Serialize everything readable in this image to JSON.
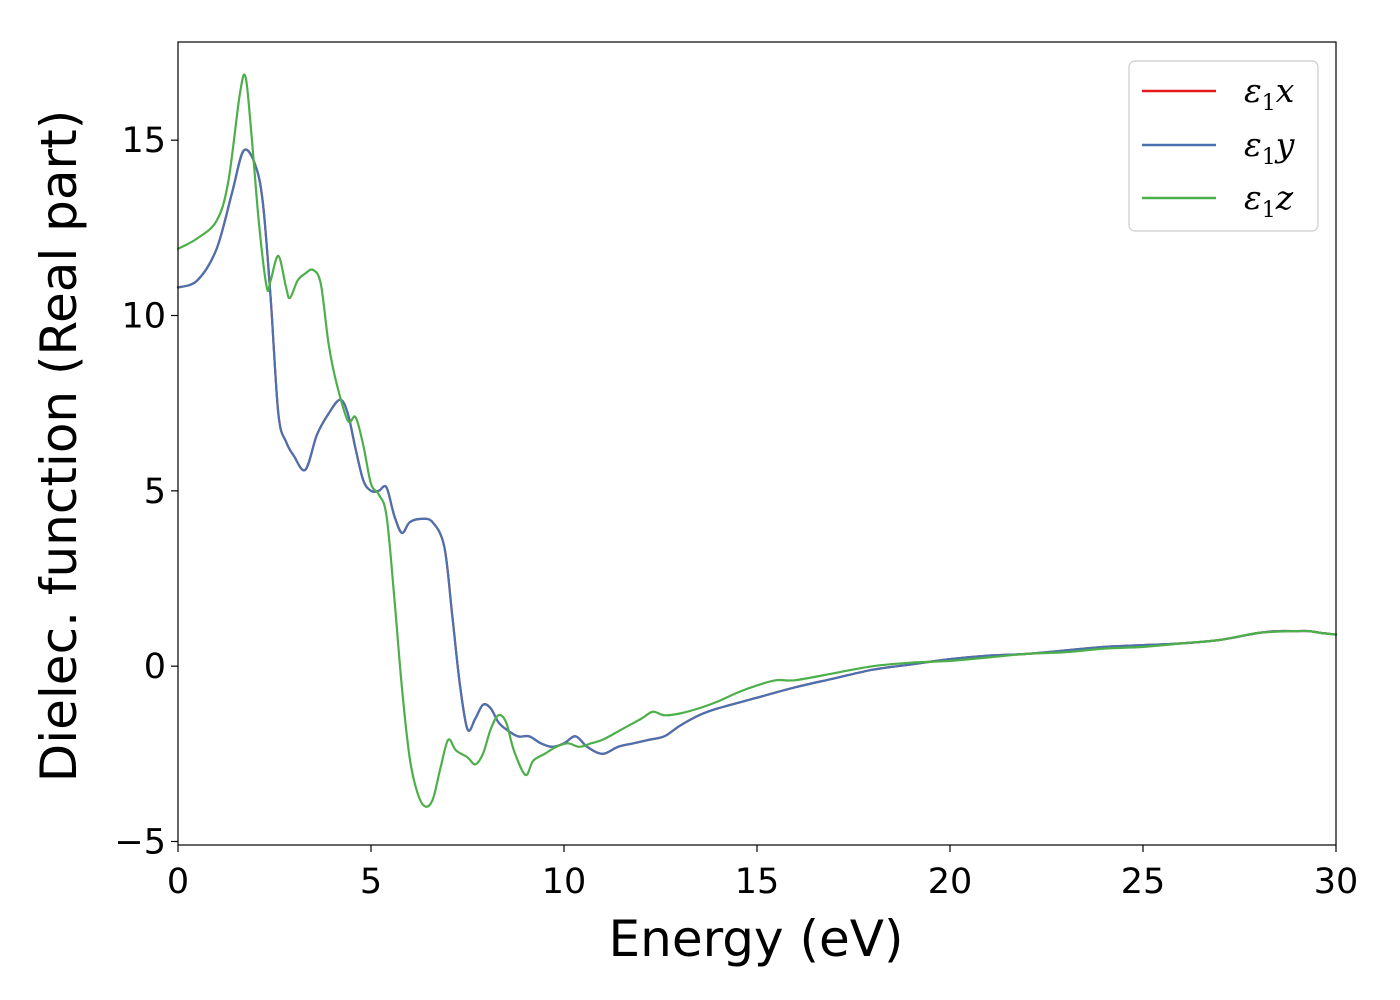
{
  "chart_data": {
    "type": "line",
    "title": "",
    "xlabel": "Energy (eV)",
    "ylabel": "Dielec. function (Real part)",
    "xlim": [
      0,
      30
    ],
    "ylim": [
      -5.1,
      17.8
    ],
    "xticks": [
      0,
      5,
      10,
      15,
      20,
      25,
      30
    ],
    "xtick_labels": [
      "0",
      "5",
      "10",
      "15",
      "20",
      "25",
      "30"
    ],
    "yticks": [
      -5,
      0,
      5,
      10,
      15
    ],
    "ytick_labels": [
      "−5",
      "0",
      "5",
      "10",
      "15"
    ],
    "grid": false,
    "legend_position": "top-right",
    "series": [
      {
        "name": "ε1x",
        "label_base": "ε",
        "label_sub": "1",
        "label_var": "x",
        "color": "#e41a1c",
        "x": [
          0,
          0.5,
          1.0,
          1.4,
          1.7,
          2.0,
          2.2,
          2.4,
          2.6,
          2.8,
          3.0,
          3.3,
          3.6,
          3.9,
          4.2,
          4.4,
          4.6,
          4.8,
          5.0,
          5.2,
          5.4,
          5.6,
          5.8,
          6.0,
          6.3,
          6.6,
          6.9,
          7.1,
          7.3,
          7.5,
          7.7,
          7.9,
          8.1,
          8.3,
          8.5,
          8.8,
          9.1,
          9.4,
          9.7,
          10.0,
          10.3,
          10.6,
          11.0,
          11.4,
          11.8,
          12.2,
          12.6,
          13.0,
          13.5,
          14.0,
          15.0,
          16.0,
          17.0,
          18.0,
          19.0,
          20.0,
          21.0,
          22.0,
          23.0,
          24.0,
          25.0,
          26.0,
          27.0,
          28.0,
          28.5,
          29.0,
          29.3,
          29.6,
          30.0
        ],
        "y": [
          10.8,
          11.0,
          11.9,
          13.5,
          14.7,
          14.3,
          13.2,
          10.5,
          7.2,
          6.4,
          6.0,
          5.6,
          6.6,
          7.2,
          7.6,
          7.2,
          6.2,
          5.3,
          5.0,
          5.0,
          5.1,
          4.3,
          3.8,
          4.1,
          4.2,
          4.1,
          3.4,
          1.5,
          -0.5,
          -1.8,
          -1.5,
          -1.1,
          -1.2,
          -1.6,
          -1.8,
          -2.0,
          -2.0,
          -2.2,
          -2.3,
          -2.2,
          -2.0,
          -2.3,
          -2.5,
          -2.3,
          -2.2,
          -2.1,
          -2.0,
          -1.7,
          -1.4,
          -1.2,
          -0.9,
          -0.6,
          -0.35,
          -0.1,
          0.05,
          0.2,
          0.3,
          0.35,
          0.45,
          0.55,
          0.6,
          0.65,
          0.75,
          0.95,
          1.0,
          1.0,
          1.0,
          0.95,
          0.9
        ]
      },
      {
        "name": "ε1y",
        "label_base": "ε",
        "label_sub": "1",
        "label_var": "y",
        "color": "#4a72b0",
        "x": [
          0,
          0.5,
          1.0,
          1.4,
          1.7,
          2.0,
          2.2,
          2.4,
          2.6,
          2.8,
          3.0,
          3.3,
          3.6,
          3.9,
          4.2,
          4.4,
          4.6,
          4.8,
          5.0,
          5.2,
          5.4,
          5.6,
          5.8,
          6.0,
          6.3,
          6.6,
          6.9,
          7.1,
          7.3,
          7.5,
          7.7,
          7.9,
          8.1,
          8.3,
          8.5,
          8.8,
          9.1,
          9.4,
          9.7,
          10.0,
          10.3,
          10.6,
          11.0,
          11.4,
          11.8,
          12.2,
          12.6,
          13.0,
          13.5,
          14.0,
          15.0,
          16.0,
          17.0,
          18.0,
          19.0,
          20.0,
          21.0,
          22.0,
          23.0,
          24.0,
          25.0,
          26.0,
          27.0,
          28.0,
          28.5,
          29.0,
          29.3,
          29.6,
          30.0
        ],
        "y": [
          10.8,
          11.0,
          11.9,
          13.5,
          14.7,
          14.3,
          13.2,
          10.5,
          7.2,
          6.4,
          6.0,
          5.6,
          6.6,
          7.2,
          7.6,
          7.2,
          6.2,
          5.3,
          5.0,
          5.0,
          5.1,
          4.3,
          3.8,
          4.1,
          4.2,
          4.1,
          3.4,
          1.5,
          -0.5,
          -1.8,
          -1.5,
          -1.1,
          -1.2,
          -1.6,
          -1.8,
          -2.0,
          -2.0,
          -2.2,
          -2.3,
          -2.2,
          -2.0,
          -2.3,
          -2.5,
          -2.3,
          -2.2,
          -2.1,
          -2.0,
          -1.7,
          -1.4,
          -1.2,
          -0.9,
          -0.6,
          -0.35,
          -0.1,
          0.05,
          0.2,
          0.3,
          0.35,
          0.45,
          0.55,
          0.6,
          0.65,
          0.75,
          0.95,
          1.0,
          1.0,
          1.0,
          0.95,
          0.9
        ]
      },
      {
        "name": "ε1z",
        "label_base": "ε",
        "label_sub": "1",
        "label_var": "z",
        "color": "#4daf4a",
        "x": [
          0,
          0.5,
          1.0,
          1.3,
          1.6,
          1.75,
          1.9,
          2.1,
          2.3,
          2.4,
          2.6,
          2.8,
          2.9,
          3.1,
          3.3,
          3.5,
          3.7,
          3.9,
          4.1,
          4.4,
          4.6,
          4.8,
          5.0,
          5.2,
          5.4,
          5.6,
          5.8,
          6.0,
          6.2,
          6.4,
          6.6,
          6.8,
          7.0,
          7.2,
          7.5,
          7.7,
          7.9,
          8.1,
          8.3,
          8.5,
          8.7,
          9.0,
          9.2,
          9.5,
          9.8,
          10.1,
          10.4,
          10.7,
          11.0,
          11.5,
          12.0,
          12.3,
          12.6,
          13.0,
          13.5,
          14.0,
          14.5,
          15.0,
          15.5,
          16.0,
          17.0,
          18.0,
          19.0,
          20.0,
          21.0,
          22.0,
          23.0,
          24.0,
          25.0,
          26.0,
          27.0,
          28.0,
          29.0,
          29.3,
          29.6,
          30.0
        ],
        "y": [
          11.9,
          12.2,
          12.7,
          13.8,
          16.3,
          16.8,
          15.2,
          12.6,
          10.8,
          11.0,
          11.7,
          10.8,
          10.5,
          11.0,
          11.2,
          11.3,
          10.9,
          9.2,
          8.1,
          7.0,
          7.1,
          6.3,
          5.2,
          4.9,
          4.3,
          2.0,
          -0.6,
          -2.6,
          -3.6,
          -4.0,
          -3.8,
          -2.9,
          -2.1,
          -2.4,
          -2.6,
          -2.8,
          -2.5,
          -1.8,
          -1.4,
          -1.6,
          -2.4,
          -3.1,
          -2.7,
          -2.5,
          -2.3,
          -2.2,
          -2.3,
          -2.2,
          -2.1,
          -1.8,
          -1.5,
          -1.3,
          -1.4,
          -1.35,
          -1.2,
          -1.0,
          -0.75,
          -0.55,
          -0.4,
          -0.4,
          -0.2,
          0.0,
          0.1,
          0.15,
          0.25,
          0.35,
          0.4,
          0.5,
          0.55,
          0.65,
          0.75,
          0.95,
          1.0,
          1.0,
          0.95,
          0.9
        ]
      }
    ]
  }
}
